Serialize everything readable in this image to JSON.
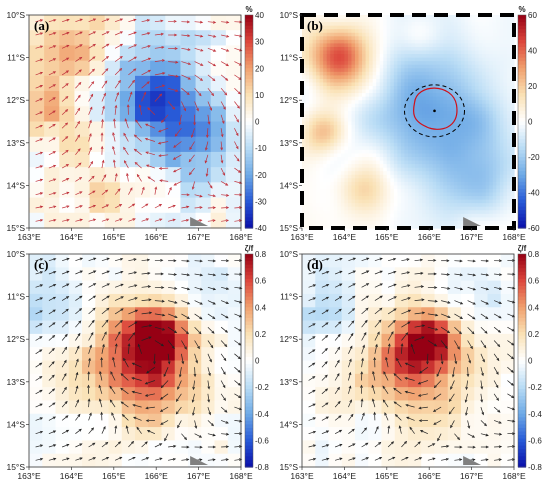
{
  "chart_data": [
    {
      "type": "heatmap",
      "panel_label": "(a)",
      "unit_label": "%",
      "x_ticks": [
        "163°E",
        "164°E",
        "165°E",
        "166°E",
        "167°E",
        "168°E"
      ],
      "y_ticks": [
        "10°S",
        "11°S",
        "12°S",
        "13°S",
        "14°S",
        "15°S"
      ],
      "xlim": [
        163,
        168
      ],
      "ylim": [
        -15,
        -10
      ],
      "colorbar": {
        "min": -40,
        "max": 40,
        "ticks": [
          "40",
          "30",
          "20",
          "10",
          "0",
          "-10",
          "-20",
          "-30",
          "-40"
        ],
        "colormap": "blue-white-red"
      },
      "field": "pixelated percent anomaly with red cyclonic arrows",
      "grid": false
    },
    {
      "type": "heatmap",
      "panel_label": "(b)",
      "unit_label": "%",
      "x_ticks": [
        "163°E",
        "164°E",
        "165°E",
        "166°E",
        "167°E",
        "168°E"
      ],
      "y_ticks": [
        "10°S",
        "11°S",
        "12°S",
        "13°S",
        "14°S",
        "15°S"
      ],
      "xlim": [
        163,
        168
      ],
      "ylim": [
        -15,
        -10
      ],
      "colorbar": {
        "min": -60,
        "max": 60,
        "ticks": [
          "60",
          "40",
          "20",
          "0",
          "-20",
          "-40",
          "-60"
        ],
        "colormap": "blue-white-red"
      },
      "field": "smooth percent anomaly with eddy contour",
      "grid": false
    },
    {
      "type": "heatmap",
      "panel_label": "(c)",
      "unit_label": "ζ/f",
      "x_ticks": [
        "163°E",
        "164°E",
        "165°E",
        "166°E",
        "167°E",
        "168°E"
      ],
      "y_ticks": [
        "10°S",
        "11°S",
        "12°S",
        "13°S",
        "14°S",
        "15°S"
      ],
      "xlim": [
        163,
        168
      ],
      "ylim": [
        -15,
        -10
      ],
      "colorbar": {
        "min": -0.8,
        "max": 0.8,
        "ticks": [
          "0.8",
          "0.6",
          "0.4",
          "0.2",
          "0",
          "-0.2",
          "-0.4",
          "-0.6",
          "-0.8"
        ],
        "colormap": "blue-white-red"
      },
      "field": "relative vorticity with black arrows",
      "grid": false
    },
    {
      "type": "heatmap",
      "panel_label": "(d)",
      "unit_label": "ζ/f",
      "x_ticks": [
        "163°E",
        "164°E",
        "165°E",
        "166°E",
        "167°E",
        "168°E"
      ],
      "y_ticks": [
        "10°S",
        "11°S",
        "12°S",
        "13°S",
        "14°S",
        "15°S"
      ],
      "xlim": [
        163,
        168
      ],
      "ylim": [
        -15,
        -10
      ],
      "colorbar": {
        "min": -0.8,
        "max": 0.8,
        "ticks": [
          "0.8",
          "0.6",
          "0.4",
          "0.2",
          "0",
          "-0.2",
          "-0.4",
          "-0.6",
          "-0.8"
        ],
        "colormap": "blue-white-red"
      },
      "field": "relative vorticity with black arrows",
      "grid": false
    }
  ]
}
